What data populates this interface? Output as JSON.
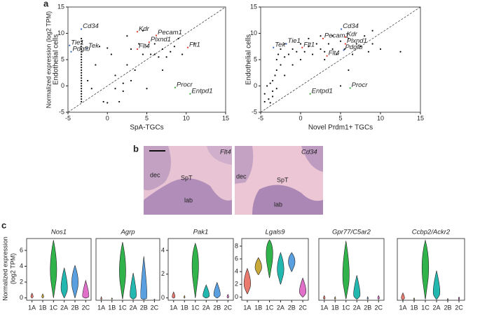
{
  "panel_labels": [
    "a",
    "b",
    "c"
  ],
  "scatter_ylabel": "Normalized expression (log2 TPM)",
  "violin_ylabel": [
    "Normalized expression",
    "(log2 TPM)"
  ],
  "images": [
    {
      "label": "Flt4",
      "regions": [
        "dec",
        "SpT",
        "lab"
      ]
    },
    {
      "label": "Cd34",
      "regions": [
        "dec",
        "SpT",
        "lab"
      ]
    }
  ],
  "chart_data": [
    {
      "type": "scatter",
      "xlabel": "SpA-TGCs",
      "xlabel_color": "#3aa83a",
      "ylabel": "Endothelial cells",
      "ylabel_color": "#e065b0",
      "xlim": [
        -5,
        15
      ],
      "ylim": [
        -5,
        15
      ],
      "xticks": [
        -5,
        0,
        5,
        10,
        15
      ],
      "yticks": [
        -5,
        0,
        5,
        10,
        15
      ],
      "color": "#111",
      "diagonal": true,
      "x": [
        -3.3,
        -3.3,
        -3.3,
        -3.3,
        -3.3,
        -3.3,
        -3.3,
        -3.3,
        -3.3,
        -3.3,
        -3.3,
        -3.3,
        -3.3,
        -3.3,
        -3.3,
        -3.3,
        -3.3,
        -3.3,
        -3.3,
        -3.3,
        -3.3,
        -3.3,
        -3.3,
        -3.3,
        -3.3,
        -2.5,
        -2,
        -1,
        0,
        0.5,
        1,
        1.5,
        2,
        2,
        2.5,
        3,
        3.5,
        4,
        4.5,
        5,
        5.5,
        6,
        6.5,
        7,
        7.5,
        8,
        8.5,
        9,
        9.5,
        3,
        1,
        -0.5,
        0,
        6,
        7,
        5,
        11,
        2.5,
        4.5,
        -1.5
      ],
      "values": [
        -3,
        -2.5,
        -2,
        -1.5,
        -1,
        -0.5,
        0,
        0.5,
        1,
        1.5,
        2,
        2.5,
        3,
        3.5,
        4,
        4.5,
        5,
        5.5,
        6,
        6.5,
        7,
        7.5,
        8,
        8.5,
        9,
        1,
        -0.5,
        7.5,
        7.2,
        6,
        2,
        -3,
        0.5,
        -1,
        4,
        7,
        3,
        8,
        6,
        7.5,
        6,
        8,
        5.5,
        7,
        5.5,
        6.5,
        7.5,
        9,
        6,
        1,
        -0.5,
        -3,
        -3.2,
        6,
        3,
        -0.5,
        8,
        9.5,
        10.5,
        4
      ],
      "annotations": [
        {
          "text": "Cd34",
          "x": -3.3,
          "y": 10.8,
          "color": "#3a66b8"
        },
        {
          "text": "Tie1",
          "x": -4.8,
          "y": 7.7,
          "color": "#3a66b8"
        },
        {
          "text": "Tek",
          "x": -2.6,
          "y": 7.1,
          "color": "#3a66b8"
        },
        {
          "text": "Pdgfb",
          "x": -4.6,
          "y": 6.5,
          "color": "#3a66b8"
        },
        {
          "text": "Kdr",
          "x": 3.8,
          "y": 10.3,
          "color": "#e0382a"
        },
        {
          "text": "Pecam1",
          "x": 6.2,
          "y": 9.6,
          "color": "#e0382a"
        },
        {
          "text": "Plxnd1",
          "x": 5.3,
          "y": 8.3,
          "color": "#e0382a"
        },
        {
          "text": "Flt4",
          "x": 3.8,
          "y": 7,
          "color": "#e0382a"
        },
        {
          "text": "Flt1",
          "x": 10.2,
          "y": 7.3,
          "color": "#e0382a"
        },
        {
          "text": "Procr",
          "x": 8.6,
          "y": -0.3,
          "color": "#3aa83a"
        },
        {
          "text": "Entpd1",
          "x": 10.5,
          "y": -1.5,
          "color": "#3aa83a"
        }
      ]
    },
    {
      "type": "scatter",
      "xlabel": "Novel Prdm1+ TGCs",
      "xlabel_color": "#2bb5b0",
      "ylabel": "Endothelial cells",
      "ylabel_color": "#e065b0",
      "xlim": [
        -5,
        15
      ],
      "ylim": [
        -5,
        15
      ],
      "xticks": [
        -5,
        0,
        5,
        10,
        15
      ],
      "yticks": [
        -5,
        0,
        5,
        10,
        15
      ],
      "color": "#111",
      "diagonal": true,
      "x": [
        -4.5,
        -4,
        -3.8,
        -3.5,
        -3.5,
        -3.2,
        -3,
        -3,
        -2.8,
        -2.5,
        -2.5,
        -2,
        -2,
        -1.5,
        -1,
        -1,
        -0.5,
        0,
        0,
        0.5,
        1,
        1,
        1.5,
        2,
        2.5,
        2.5,
        3,
        3.5,
        4,
        4,
        4.5,
        5,
        5.5,
        6,
        6.5,
        7,
        7.5,
        8,
        8.5,
        9,
        10,
        12.5,
        -3.5,
        -4.2,
        -3,
        -2,
        3,
        6,
        5,
        9,
        -4.5,
        -3.8
      ],
      "values": [
        -3,
        -2.5,
        -3.2,
        -1,
        1,
        2,
        3,
        5,
        6,
        4,
        7,
        5.5,
        8,
        6,
        7,
        4,
        6.5,
        8,
        5,
        6.5,
        7.5,
        9,
        6,
        8,
        7,
        9.5,
        6.5,
        8,
        9.5,
        7,
        6,
        8.5,
        7,
        9,
        6,
        8,
        7.5,
        9.5,
        6.5,
        8,
        7,
        6.5,
        -2,
        0,
        -0.5,
        2,
        5,
        3,
        0,
        10.5,
        -1.5,
        0.5
      ],
      "annotations": [
        {
          "text": "Tek",
          "x": -3.4,
          "y": 7.3,
          "color": "#3a66b8"
        },
        {
          "text": "Tie1",
          "x": -1.8,
          "y": 8,
          "color": "#3a66b8"
        },
        {
          "text": "Flt1",
          "x": 0.2,
          "y": 7.3,
          "color": "#e0382a"
        },
        {
          "text": "Pecam1",
          "x": 2.8,
          "y": 9,
          "color": "#e0382a"
        },
        {
          "text": "Cd34",
          "x": 5.1,
          "y": 10.8,
          "color": "#3a66b8"
        },
        {
          "text": "Kdr",
          "x": 5.6,
          "y": 9.3,
          "color": "#e0382a"
        },
        {
          "text": "Plxnd1",
          "x": 5.6,
          "y": 8,
          "color": "#e0382a"
        },
        {
          "text": "Pdgfb",
          "x": 5.4,
          "y": 6.8,
          "color": "#3a66b8"
        },
        {
          "text": "Flt4",
          "x": 3.3,
          "y": 5.7,
          "color": "#e0382a"
        },
        {
          "text": "Entpd1",
          "x": 1.2,
          "y": -1.5,
          "color": "#3aa83a"
        },
        {
          "text": "Procr",
          "x": 6.2,
          "y": -0.4,
          "color": "#3aa83a"
        }
      ]
    },
    {
      "type": "violin",
      "title": "Nos1",
      "categories": [
        "1A",
        "1B",
        "1C",
        "2A",
        "2B",
        "2C"
      ],
      "colors": [
        "#ea7a6e",
        "#c8a838",
        "#2fb34a",
        "#22b8b0",
        "#5aa0e0",
        "#e070c8"
      ],
      "ylim": [
        -0.3,
        7.5
      ],
      "yticks": [
        0,
        2,
        4,
        6
      ],
      "min": [
        0,
        0,
        0,
        0,
        0,
        0
      ],
      "max": [
        0.6,
        0.5,
        7.3,
        3.8,
        4.1,
        2.2
      ],
      "median": [
        0.2,
        0.2,
        4.5,
        1.5,
        2.5,
        0.2
      ]
    },
    {
      "type": "violin",
      "title": "Agrp",
      "categories": [
        "1A",
        "1B",
        "1C",
        "2A",
        "2B",
        "2C"
      ],
      "colors": [
        "#ea7a6e",
        "#c8a838",
        "#2fb34a",
        "#22b8b0",
        "#5aa0e0",
        "#e070c8"
      ],
      "ylim": [
        -0.1,
        5.1
      ],
      "yticks": [],
      "min": [
        0,
        0,
        0,
        0,
        0,
        0
      ],
      "max": [
        0.2,
        0.1,
        4.8,
        2.2,
        3.6,
        0
      ],
      "median": [
        0,
        0.05,
        3,
        0.3,
        0.1,
        0
      ]
    },
    {
      "type": "violin",
      "title": "Pak1",
      "categories": [
        "1A",
        "1B",
        "1C",
        "2A",
        "2B",
        "2C"
      ],
      "colors": [
        "#ea7a6e",
        "#c8a838",
        "#2fb34a",
        "#22b8b0",
        "#5aa0e0",
        "#e070c8"
      ],
      "ylim": [
        -0.2,
        5
      ],
      "yticks": [
        0,
        2,
        4
      ],
      "min": [
        0,
        0,
        0,
        0,
        0,
        0
      ],
      "max": [
        0.5,
        0.2,
        4.6,
        1.1,
        1.3,
        0.3
      ],
      "median": [
        0.1,
        0.05,
        3.5,
        0.2,
        0.3,
        0.1
      ]
    },
    {
      "type": "violin",
      "title": "Lgals9",
      "categories": [
        "1A",
        "1B",
        "1C",
        "2A",
        "2B",
        "2C"
      ],
      "colors": [
        "#ea7a6e",
        "#c8a838",
        "#2fb34a",
        "#22b8b0",
        "#5aa0e0",
        "#e070c8"
      ],
      "ylim": [
        -0.5,
        9.2
      ],
      "yticks": [
        0,
        2,
        4,
        6,
        8
      ],
      "min": [
        0.5,
        3.5,
        3,
        2,
        4,
        0
      ],
      "max": [
        4.5,
        6.2,
        9,
        7,
        7,
        3
      ],
      "median": [
        2.5,
        5,
        8,
        5,
        6,
        1
      ]
    },
    {
      "type": "violin",
      "title": "Gpr77/C5ar2",
      "categories": [
        "1A",
        "1B",
        "1C",
        "2A",
        "2B",
        "2C"
      ],
      "colors": [
        "#ea7a6e",
        "#c8a838",
        "#2fb34a",
        "#22b8b0",
        "#5aa0e0",
        "#e070c8"
      ],
      "ylim": [
        -0.1,
        5.1
      ],
      "yticks": [],
      "min": [
        0,
        0,
        0,
        0,
        0,
        0
      ],
      "max": [
        0.3,
        0.2,
        4.9,
        2,
        0.2,
        0.3
      ],
      "median": [
        0.1,
        0.05,
        2.5,
        0.4,
        0.05,
        0.1
      ]
    },
    {
      "type": "violin",
      "title": "Ccbp2/Ackr2",
      "categories": [
        "1A",
        "1B",
        "1C",
        "2A",
        "2B",
        "2C"
      ],
      "colors": [
        "#ea7a6e",
        "#c8a838",
        "#2fb34a",
        "#22b8b0",
        "#5aa0e0",
        "#e070c8"
      ],
      "ylim": [
        -0.1,
        7.4
      ],
      "yticks": [],
      "min": [
        0,
        0,
        0,
        0,
        0,
        0
      ],
      "max": [
        0.8,
        0.2,
        7.2,
        3.5,
        0.1,
        0.3
      ],
      "median": [
        0.2,
        0.05,
        5,
        1,
        0.05,
        0.1
      ]
    }
  ]
}
